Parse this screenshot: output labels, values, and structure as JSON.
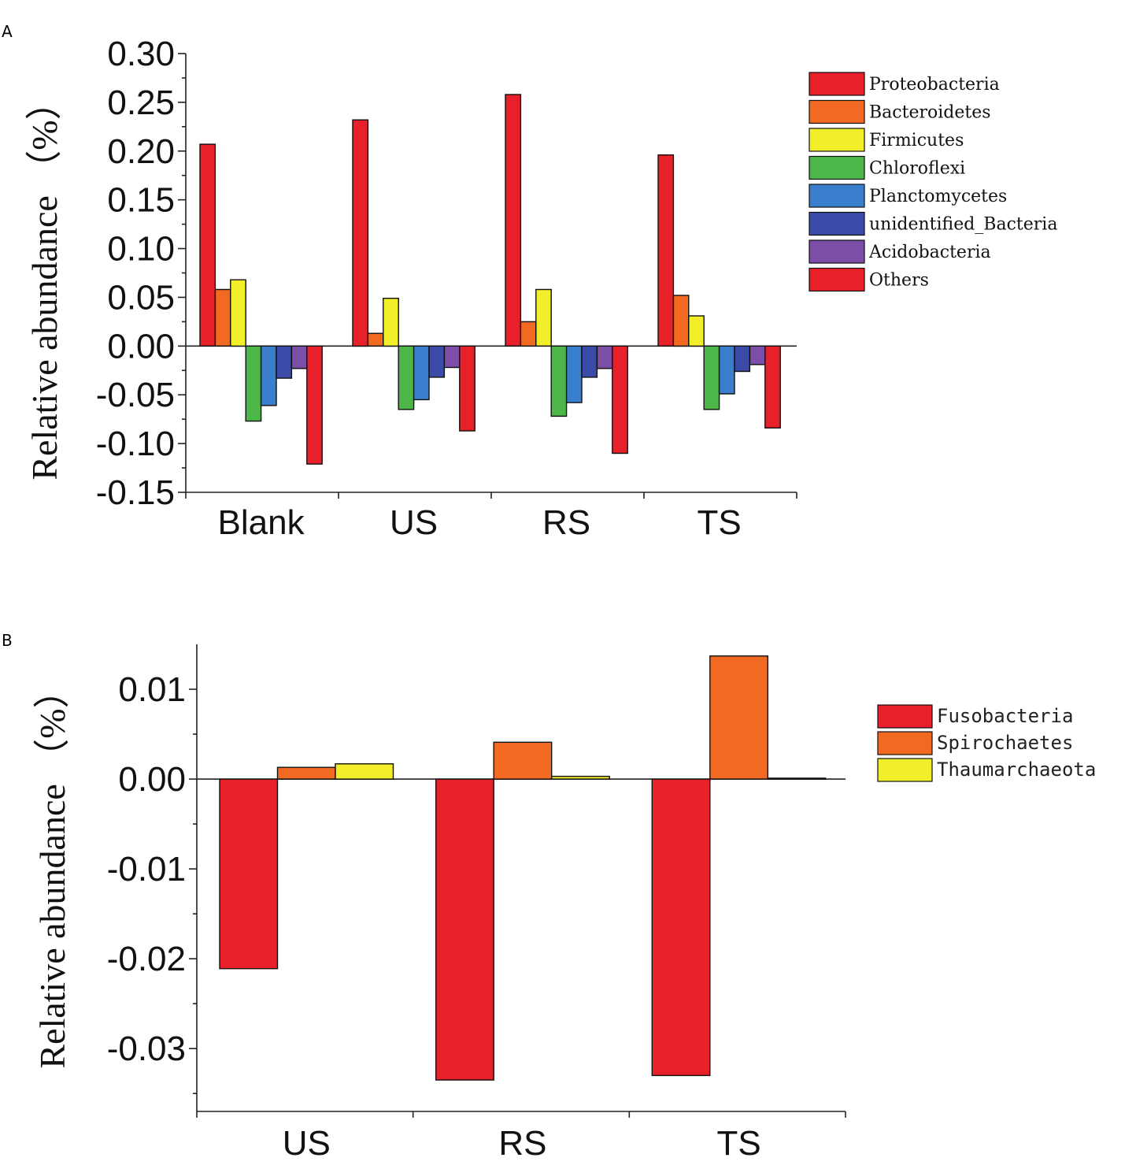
{
  "panels": {
    "a": {
      "label": "A"
    },
    "b": {
      "label": "B"
    }
  },
  "chart_data": [
    {
      "type": "bar",
      "panel": "A",
      "title": "",
      "xlabel": "",
      "ylabel": "Relative abundance (%)",
      "ylabel_parts": {
        "text": "Relative abundance",
        "unit": "（%）"
      },
      "ylim": [
        -0.15,
        0.3
      ],
      "yticks": [
        "0.30",
        "0.25",
        "0.20",
        "0.15",
        "0.10",
        "0.05",
        "0.00",
        "-0.05",
        "-0.10",
        "-0.15"
      ],
      "categories": [
        "Blank",
        "US",
        "RS",
        "TS"
      ],
      "legend_position": "right",
      "series": [
        {
          "name": "Proteobacteria",
          "color": "#e8202a",
          "values": [
            0.207,
            0.232,
            0.258,
            0.196
          ]
        },
        {
          "name": "Bacteroidetes",
          "color": "#f26a22",
          "values": [
            0.058,
            0.013,
            0.025,
            0.052
          ]
        },
        {
          "name": "Firmicutes",
          "color": "#f3ee2a",
          "values": [
            0.068,
            0.049,
            0.058,
            0.031
          ]
        },
        {
          "name": "Chloroflexi",
          "color": "#4cb648",
          "values": [
            -0.077,
            -0.065,
            -0.072,
            -0.065
          ]
        },
        {
          "name": "Planctomycetes",
          "color": "#3a7fce",
          "values": [
            -0.061,
            -0.055,
            -0.058,
            -0.049
          ]
        },
        {
          "name": "unidentified_Bacteria",
          "color": "#3c4aa8",
          "values": [
            -0.033,
            -0.032,
            -0.032,
            -0.026
          ]
        },
        {
          "name": "Acidobacteria",
          "color": "#7b4fa8",
          "values": [
            -0.023,
            -0.022,
            -0.023,
            -0.019
          ]
        },
        {
          "name": "Others",
          "color": "#e8202a",
          "values": [
            -0.121,
            -0.087,
            -0.11,
            -0.084
          ]
        }
      ]
    },
    {
      "type": "bar",
      "panel": "B",
      "title": "",
      "xlabel": "",
      "ylabel": "Relative abundance (%)",
      "ylabel_parts": {
        "text": "Relative abundance",
        "unit": "（%）"
      },
      "ylim": [
        -0.037,
        0.015
      ],
      "yticks": [
        "0.01",
        "0.00",
        "-0.01",
        "-0.02",
        "-0.03"
      ],
      "categories": [
        "US",
        "RS",
        "TS"
      ],
      "legend_position": "right",
      "series": [
        {
          "name": "Fusobacteria",
          "color": "#e8202a",
          "values": [
            -0.0211,
            -0.0335,
            -0.033
          ]
        },
        {
          "name": "Spirochaetes",
          "color": "#f26a22",
          "values": [
            0.0013,
            0.0041,
            0.0137
          ]
        },
        {
          "name": "Thaumarchaeota",
          "color": "#f3ee2a",
          "values": [
            0.0017,
            0.0003,
            0.0001
          ]
        }
      ]
    }
  ]
}
